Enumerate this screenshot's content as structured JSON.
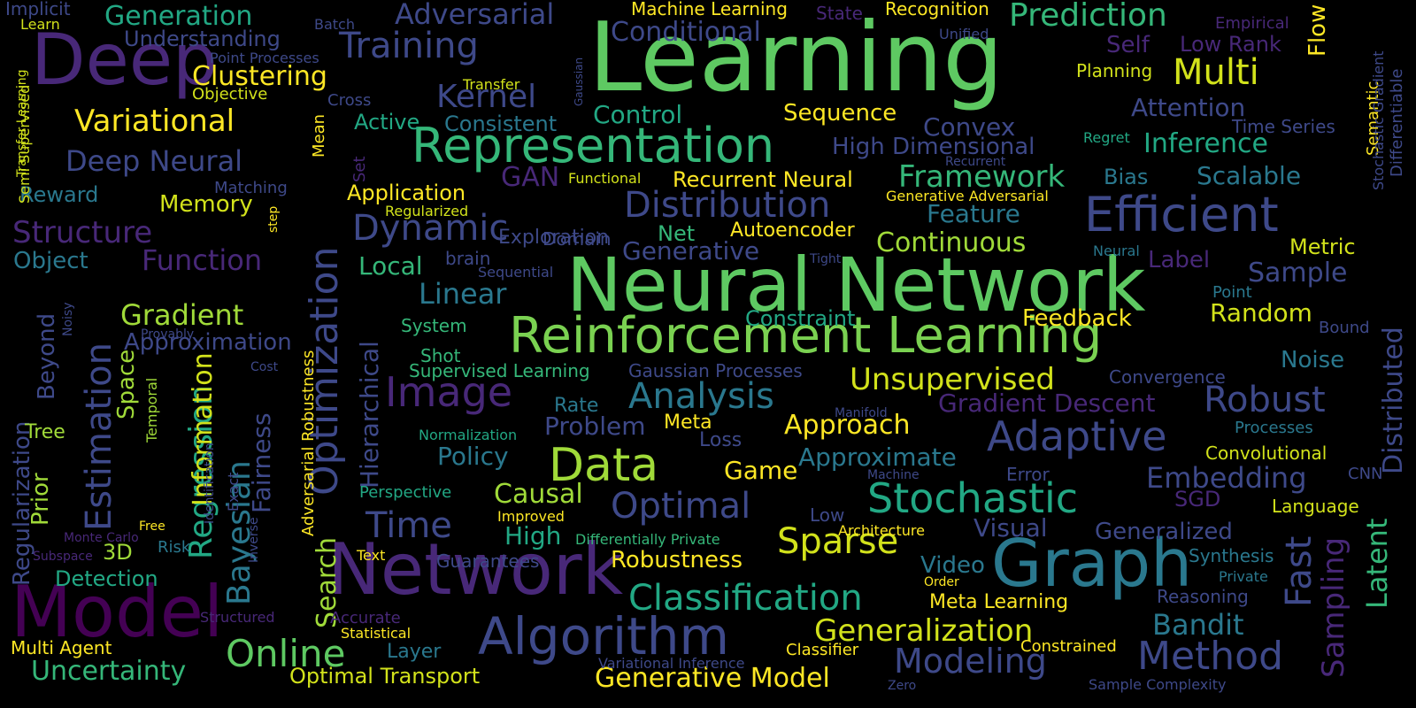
{
  "words": [
    {
      "text": "Learning",
      "color": "#5ec962"
    },
    {
      "text": "Neural Network",
      "color": "#5ec962"
    },
    {
      "text": "Reinforcement Learning",
      "color": "#7ad151"
    },
    {
      "text": "Network",
      "color": "#482878"
    },
    {
      "text": "Graph",
      "color": "#2a788e"
    },
    {
      "text": "Model",
      "color": "#440154"
    },
    {
      "text": "Deep",
      "color": "#482878"
    },
    {
      "text": "Representation",
      "color": "#35b779"
    },
    {
      "text": "Optimization",
      "color": "#3e4989"
    },
    {
      "text": "Algorithm",
      "color": "#3e4989"
    },
    {
      "text": "Efficient",
      "color": "#3e4989"
    },
    {
      "text": "Data",
      "color": "#a0da39"
    },
    {
      "text": "Image",
      "color": "#482878"
    },
    {
      "text": "Stochastic",
      "color": "#22a884"
    },
    {
      "text": "Adaptive",
      "color": "#3e4989"
    },
    {
      "text": "Method",
      "color": "#3e4989"
    },
    {
      "text": "Online",
      "color": "#5ec962"
    },
    {
      "text": "Training",
      "color": "#3e4989"
    },
    {
      "text": "Estimation",
      "color": "#3e4989"
    },
    {
      "text": "Bayesian",
      "color": "#2a788e"
    },
    {
      "text": "Robust",
      "color": "#3e4989"
    },
    {
      "text": "Multi",
      "color": "#d2e21b"
    },
    {
      "text": "Optimal",
      "color": "#3e4989"
    },
    {
      "text": "Classification",
      "color": "#22a884"
    },
    {
      "text": "Analysis",
      "color": "#2a788e"
    },
    {
      "text": "Distribution",
      "color": "#3e4989"
    },
    {
      "text": "Modeling",
      "color": "#3e4989"
    },
    {
      "text": "Sparse",
      "color": "#d2e21b"
    },
    {
      "text": "Time",
      "color": "#3e4989"
    },
    {
      "text": "Dynamic",
      "color": "#3e4989"
    },
    {
      "text": "Prediction",
      "color": "#35b779"
    },
    {
      "text": "Regression",
      "color": "#22a884"
    },
    {
      "text": "Framework",
      "color": "#35b779"
    },
    {
      "text": "Generalization",
      "color": "#d2e21b"
    },
    {
      "text": "Unsupervised",
      "color": "#d2e21b"
    },
    {
      "text": "Variational",
      "color": "#fde725"
    },
    {
      "text": "Deep Neural",
      "color": "#3e4989"
    },
    {
      "text": "Generative Model",
      "color": "#fde725"
    },
    {
      "text": "Uncertainty",
      "color": "#35b779"
    },
    {
      "text": "Kernel",
      "color": "#3e4989"
    },
    {
      "text": "Clustering",
      "color": "#fde725"
    },
    {
      "text": "Generation",
      "color": "#22a884"
    },
    {
      "text": "Structure",
      "color": "#482878"
    },
    {
      "text": "Function",
      "color": "#482878"
    },
    {
      "text": "Gradient",
      "color": "#a0da39"
    },
    {
      "text": "Adversarial",
      "color": "#3e4989"
    },
    {
      "text": "Conditional",
      "color": "#3e4989"
    },
    {
      "text": "Inference",
      "color": "#22a884"
    },
    {
      "text": "Attention",
      "color": "#3e4989"
    },
    {
      "text": "Bandit",
      "color": "#2a788e"
    },
    {
      "text": "Embedding",
      "color": "#3e4989"
    },
    {
      "text": "Continuous",
      "color": "#a0da39"
    },
    {
      "text": "Linear",
      "color": "#2a788e"
    },
    {
      "text": "Approach",
      "color": "#fde725"
    },
    {
      "text": "Scalable",
      "color": "#2a788e"
    },
    {
      "text": "Causal",
      "color": "#a0da39"
    },
    {
      "text": "Policy",
      "color": "#2a788e"
    },
    {
      "text": "Convex",
      "color": "#3e4989"
    },
    {
      "text": "Control",
      "color": "#22a884"
    },
    {
      "text": "Memory",
      "color": "#d2e21b"
    },
    {
      "text": "Sequence",
      "color": "#fde725"
    },
    {
      "text": "Random",
      "color": "#d2e21b"
    },
    {
      "text": "Sample",
      "color": "#3e4989"
    },
    {
      "text": "Game",
      "color": "#fde725"
    },
    {
      "text": "Robustness",
      "color": "#fde725"
    },
    {
      "text": "Approximate",
      "color": "#2a788e"
    },
    {
      "text": "Visual",
      "color": "#3e4989"
    },
    {
      "text": "Generalized",
      "color": "#3e4989"
    },
    {
      "text": "Hierarchical",
      "color": "#3e4989"
    },
    {
      "text": "Fast",
      "color": "#3e4989"
    },
    {
      "text": "Sampling",
      "color": "#482878"
    },
    {
      "text": "Latent",
      "color": "#35b779"
    },
    {
      "text": "Distributed",
      "color": "#3e4989"
    },
    {
      "text": "High Dimensional",
      "color": "#3e4989"
    },
    {
      "text": "Recurrent Neural",
      "color": "#fde725"
    },
    {
      "text": "Gradient Descent",
      "color": "#482878"
    },
    {
      "text": "Feature",
      "color": "#2a788e"
    },
    {
      "text": "Generative",
      "color": "#3e4989"
    },
    {
      "text": "Problem",
      "color": "#3e4989"
    },
    {
      "text": "Application",
      "color": "#fde725"
    },
    {
      "text": "Object",
      "color": "#2a788e"
    },
    {
      "text": "Local",
      "color": "#35b779"
    },
    {
      "text": "Understanding",
      "color": "#3e4989"
    },
    {
      "text": "Consistent",
      "color": "#2a788e"
    },
    {
      "text": "Detection",
      "color": "#22a884"
    },
    {
      "text": "Optimal Transport",
      "color": "#d2e21b"
    },
    {
      "text": "Information",
      "color": "#d2e21b"
    },
    {
      "text": "Regularization",
      "color": "#3e4989"
    },
    {
      "text": "Search",
      "color": "#a0da39"
    },
    {
      "text": "Layer",
      "color": "#2a788e"
    },
    {
      "text": "Video",
      "color": "#2a788e"
    },
    {
      "text": "Noise",
      "color": "#2a788e"
    },
    {
      "text": "Metric",
      "color": "#d2e21b"
    },
    {
      "text": "Self",
      "color": "#482878"
    },
    {
      "text": "Approximation",
      "color": "#3e4989"
    },
    {
      "text": "Flow",
      "color": "#fde725"
    },
    {
      "text": "Beyond",
      "color": "#3e4989"
    },
    {
      "text": "Space",
      "color": "#a0da39"
    },
    {
      "text": "Prior",
      "color": "#a0da39"
    },
    {
      "text": "Tree",
      "color": "#a0da39"
    },
    {
      "text": "Reward",
      "color": "#2a788e"
    },
    {
      "text": "Low Rank",
      "color": "#482878"
    },
    {
      "text": "Label",
      "color": "#482878"
    },
    {
      "text": "Feedback",
      "color": "#fde725"
    },
    {
      "text": "Constraint",
      "color": "#22a884"
    },
    {
      "text": "Autoencoder",
      "color": "#fde725"
    },
    {
      "text": "Net",
      "color": "#35b779"
    },
    {
      "text": "Bias",
      "color": "#2a788e"
    },
    {
      "text": "Exploration",
      "color": "#3e4989"
    },
    {
      "text": "GAN",
      "color": "#482878"
    },
    {
      "text": "Meta Learning",
      "color": "#fde725"
    },
    {
      "text": "High",
      "color": "#22a884"
    },
    {
      "text": "Meta",
      "color": "#fde725"
    },
    {
      "text": "Loss",
      "color": "#3e4989"
    },
    {
      "text": "Rate",
      "color": "#2a788e"
    },
    {
      "text": "Active",
      "color": "#22a884"
    },
    {
      "text": "Supervised Learning",
      "color": "#35b779"
    },
    {
      "text": "Fairness",
      "color": "#3e4989"
    },
    {
      "text": "Adversarial Robustness",
      "color": "#fde725"
    },
    {
      "text": "Multi Agent",
      "color": "#fde725"
    },
    {
      "text": "SGD",
      "color": "#482878"
    },
    {
      "text": "Mean",
      "color": "#fde725"
    },
    {
      "text": "3D",
      "color": "#a0da39"
    },
    {
      "text": "Gaussian Processes",
      "color": "#3e4989"
    },
    {
      "text": "Guarantees",
      "color": "#3e4989"
    },
    {
      "text": "Convergence",
      "color": "#3e4989"
    },
    {
      "text": "Convolutional",
      "color": "#d2e21b"
    },
    {
      "text": "Time Series",
      "color": "#3e4989"
    },
    {
      "text": "Reasoning",
      "color": "#3e4989"
    },
    {
      "text": "Synthesis",
      "color": "#2a788e"
    },
    {
      "text": "Language",
      "color": "#d2e21b"
    },
    {
      "text": "System",
      "color": "#35b779"
    },
    {
      "text": "Machine Learning",
      "color": "#fde725"
    },
    {
      "text": "Recognition",
      "color": "#fde725"
    },
    {
      "text": "State",
      "color": "#482878"
    },
    {
      "text": "Risk",
      "color": "#2a788e"
    },
    {
      "text": "Processes",
      "color": "#2a788e"
    },
    {
      "text": "Semantic",
      "color": "#fde725"
    },
    {
      "text": "Planning",
      "color": "#d2e21b"
    },
    {
      "text": "Point Processes",
      "color": "#3e4989"
    },
    {
      "text": "Objective",
      "color": "#d2e21b"
    },
    {
      "text": "Implicit",
      "color": "#3e4989"
    },
    {
      "text": "Error",
      "color": "#3e4989"
    },
    {
      "text": "Accurate",
      "color": "#482878"
    },
    {
      "text": "Statistical",
      "color": "#fde725"
    },
    {
      "text": "Domain",
      "color": "#3e4989"
    },
    {
      "text": "brain",
      "color": "#3e4989"
    },
    {
      "text": "Sequential",
      "color": "#3e4989"
    },
    {
      "text": "Matching",
      "color": "#3e4989"
    },
    {
      "text": "Transfer",
      "color": "#d2e21b"
    },
    {
      "text": "Cross",
      "color": "#3e4989"
    },
    {
      "text": "Batch",
      "color": "#3e4989"
    },
    {
      "text": "Learn",
      "color": "#d2e21b"
    },
    {
      "text": "Semi Supervised",
      "color": "#d2e21b"
    },
    {
      "text": "Transfer Learning",
      "color": "#d2e21b"
    },
    {
      "text": "Differentiable",
      "color": "#3e4989"
    },
    {
      "text": "Stochastic Gradient",
      "color": "#3e4989"
    },
    {
      "text": "Empirical",
      "color": "#482878"
    },
    {
      "text": "Unified",
      "color": "#3e4989"
    },
    {
      "text": "Gaussian",
      "color": "#3e4989"
    },
    {
      "text": "Regret",
      "color": "#22a884"
    },
    {
      "text": "Recurrent",
      "color": "#3e4989"
    },
    {
      "text": "Generative Adversarial",
      "color": "#fde725"
    },
    {
      "text": "Functional",
      "color": "#d2e21b"
    },
    {
      "text": "Regularized",
      "color": "#d2e21b"
    },
    {
      "text": "Tight",
      "color": "#3e4989"
    },
    {
      "text": "Neural",
      "color": "#2a788e"
    },
    {
      "text": "Point",
      "color": "#2a788e"
    },
    {
      "text": "Bound",
      "color": "#3e4989"
    },
    {
      "text": "Shot",
      "color": "#35b779"
    },
    {
      "text": "Normalization",
      "color": "#22a884"
    },
    {
      "text": "Perspective",
      "color": "#22a884"
    },
    {
      "text": "Improved",
      "color": "#fde725"
    },
    {
      "text": "Differentially Private",
      "color": "#35b779"
    },
    {
      "text": "Manifold",
      "color": "#3e4989"
    },
    {
      "text": "Machine",
      "color": "#3e4989"
    },
    {
      "text": "Architecture",
      "color": "#fde725"
    },
    {
      "text": "Low",
      "color": "#3e4989"
    },
    {
      "text": "Order",
      "color": "#fde725"
    },
    {
      "text": "Private",
      "color": "#2a788e"
    },
    {
      "text": "CNN",
      "color": "#3e4989"
    },
    {
      "text": "Constrained",
      "color": "#fde725"
    },
    {
      "text": "Classifier",
      "color": "#fde725"
    },
    {
      "text": "Variational Inference",
      "color": "#3e4989"
    },
    {
      "text": "Zero",
      "color": "#3e4989"
    },
    {
      "text": "Sample Complexity",
      "color": "#3e4989"
    },
    {
      "text": "Text",
      "color": "#fde725"
    },
    {
      "text": "Structured",
      "color": "#482878"
    },
    {
      "text": "Monte Carlo",
      "color": "#482878"
    },
    {
      "text": "Subspace",
      "color": "#482878"
    },
    {
      "text": "Free",
      "color": "#fde725"
    },
    {
      "text": "Identification",
      "color": "#3e4989"
    },
    {
      "text": "Exact",
      "color": "#3e4989"
    },
    {
      "text": "Inverse",
      "color": "#3e4989"
    },
    {
      "text": "Temporal",
      "color": "#a0da39"
    },
    {
      "text": "Provably",
      "color": "#3e4989"
    },
    {
      "text": "Cost",
      "color": "#3e4989"
    },
    {
      "text": "Noisy",
      "color": "#3e4989"
    },
    {
      "text": "step",
      "color": "#fde725"
    },
    {
      "text": "Set",
      "color": "#482878"
    }
  ]
}
